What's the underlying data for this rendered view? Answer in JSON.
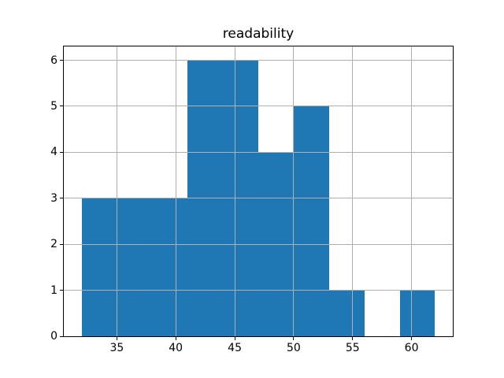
{
  "title": "readability",
  "chart_data": {
    "type": "bar",
    "subtype": "histogram",
    "title": "readability",
    "xlabel": "",
    "ylabel": "",
    "bin_edges": [
      32,
      35,
      38,
      41,
      44,
      47,
      50,
      53,
      56,
      59,
      62
    ],
    "counts": [
      3,
      3,
      3,
      6,
      6,
      4,
      5,
      1,
      0,
      1
    ],
    "xlim": [
      30.5,
      63.5
    ],
    "ylim": [
      0,
      6.3
    ],
    "x_ticks": [
      35,
      40,
      45,
      50,
      55,
      60
    ],
    "y_ticks": [
      0,
      1,
      2,
      3,
      4,
      5,
      6
    ],
    "grid": true,
    "grid_above_bars": true,
    "legend": false,
    "bar_color": "#1f77b4",
    "grid_color": "#b0b0b0",
    "spine_color": "#000000",
    "background_color": "#ffffff"
  }
}
